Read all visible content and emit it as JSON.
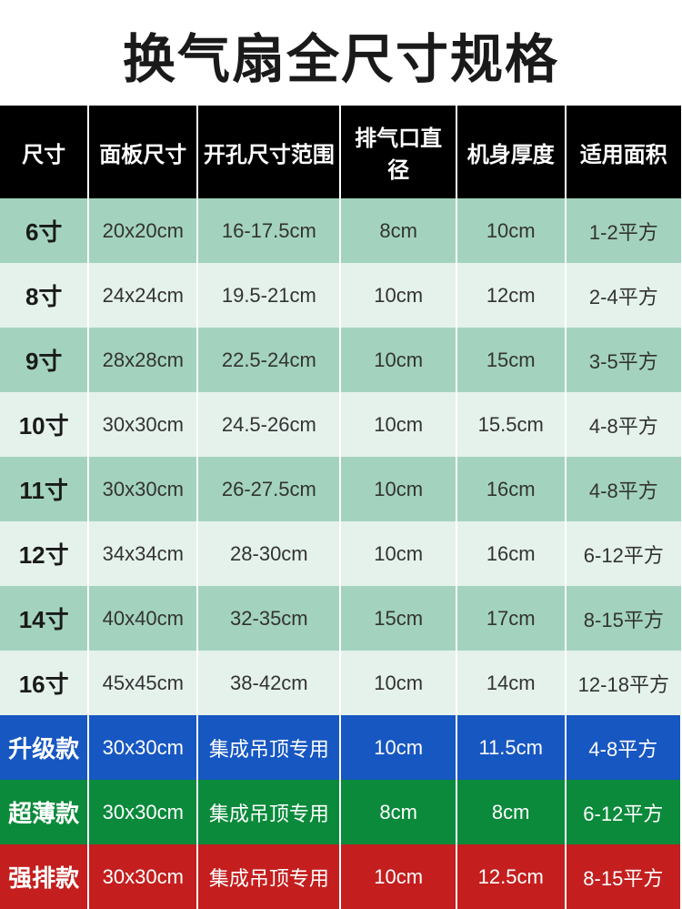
{
  "title": "换气扇全尺寸规格",
  "columns": [
    "尺寸",
    "面板尺寸",
    "开孔尺寸范围",
    "排气口直径",
    "机身厚度",
    "适用面积"
  ],
  "rows": [
    {
      "variant": "dark-green",
      "cells": [
        "6寸",
        "20x20cm",
        "16-17.5cm",
        "8cm",
        "10cm",
        "1-2平方"
      ]
    },
    {
      "variant": "light-green",
      "cells": [
        "8寸",
        "24x24cm",
        "19.5-21cm",
        "10cm",
        "12cm",
        "2-4平方"
      ]
    },
    {
      "variant": "dark-green",
      "cells": [
        "9寸",
        "28x28cm",
        "22.5-24cm",
        "10cm",
        "15cm",
        "3-5平方"
      ]
    },
    {
      "variant": "light-green",
      "cells": [
        "10寸",
        "30x30cm",
        "24.5-26cm",
        "10cm",
        "15.5cm",
        "4-8平方"
      ]
    },
    {
      "variant": "dark-green",
      "cells": [
        "11寸",
        "30x30cm",
        "26-27.5cm",
        "10cm",
        "16cm",
        "4-8平方"
      ]
    },
    {
      "variant": "light-green",
      "cells": [
        "12寸",
        "34x34cm",
        "28-30cm",
        "10cm",
        "16cm",
        "6-12平方"
      ]
    },
    {
      "variant": "dark-green",
      "cells": [
        "14寸",
        "40x40cm",
        "32-35cm",
        "15cm",
        "17cm",
        "8-15平方"
      ]
    },
    {
      "variant": "light-green",
      "cells": [
        "16寸",
        "45x45cm",
        "38-42cm",
        "10cm",
        "14cm",
        "12-18平方"
      ]
    },
    {
      "variant": "special blue",
      "cells": [
        "升级款",
        "30x30cm",
        "集成吊顶专用",
        "10cm",
        "11.5cm",
        "4-8平方"
      ]
    },
    {
      "variant": "special green",
      "cells": [
        "超薄款",
        "30x30cm",
        "集成吊顶专用",
        "8cm",
        "8cm",
        "6-12平方"
      ]
    },
    {
      "variant": "special red",
      "cells": [
        "强排款",
        "30x30cm",
        "集成吊顶专用",
        "10cm",
        "12.5cm",
        "8-15平方"
      ]
    }
  ]
}
